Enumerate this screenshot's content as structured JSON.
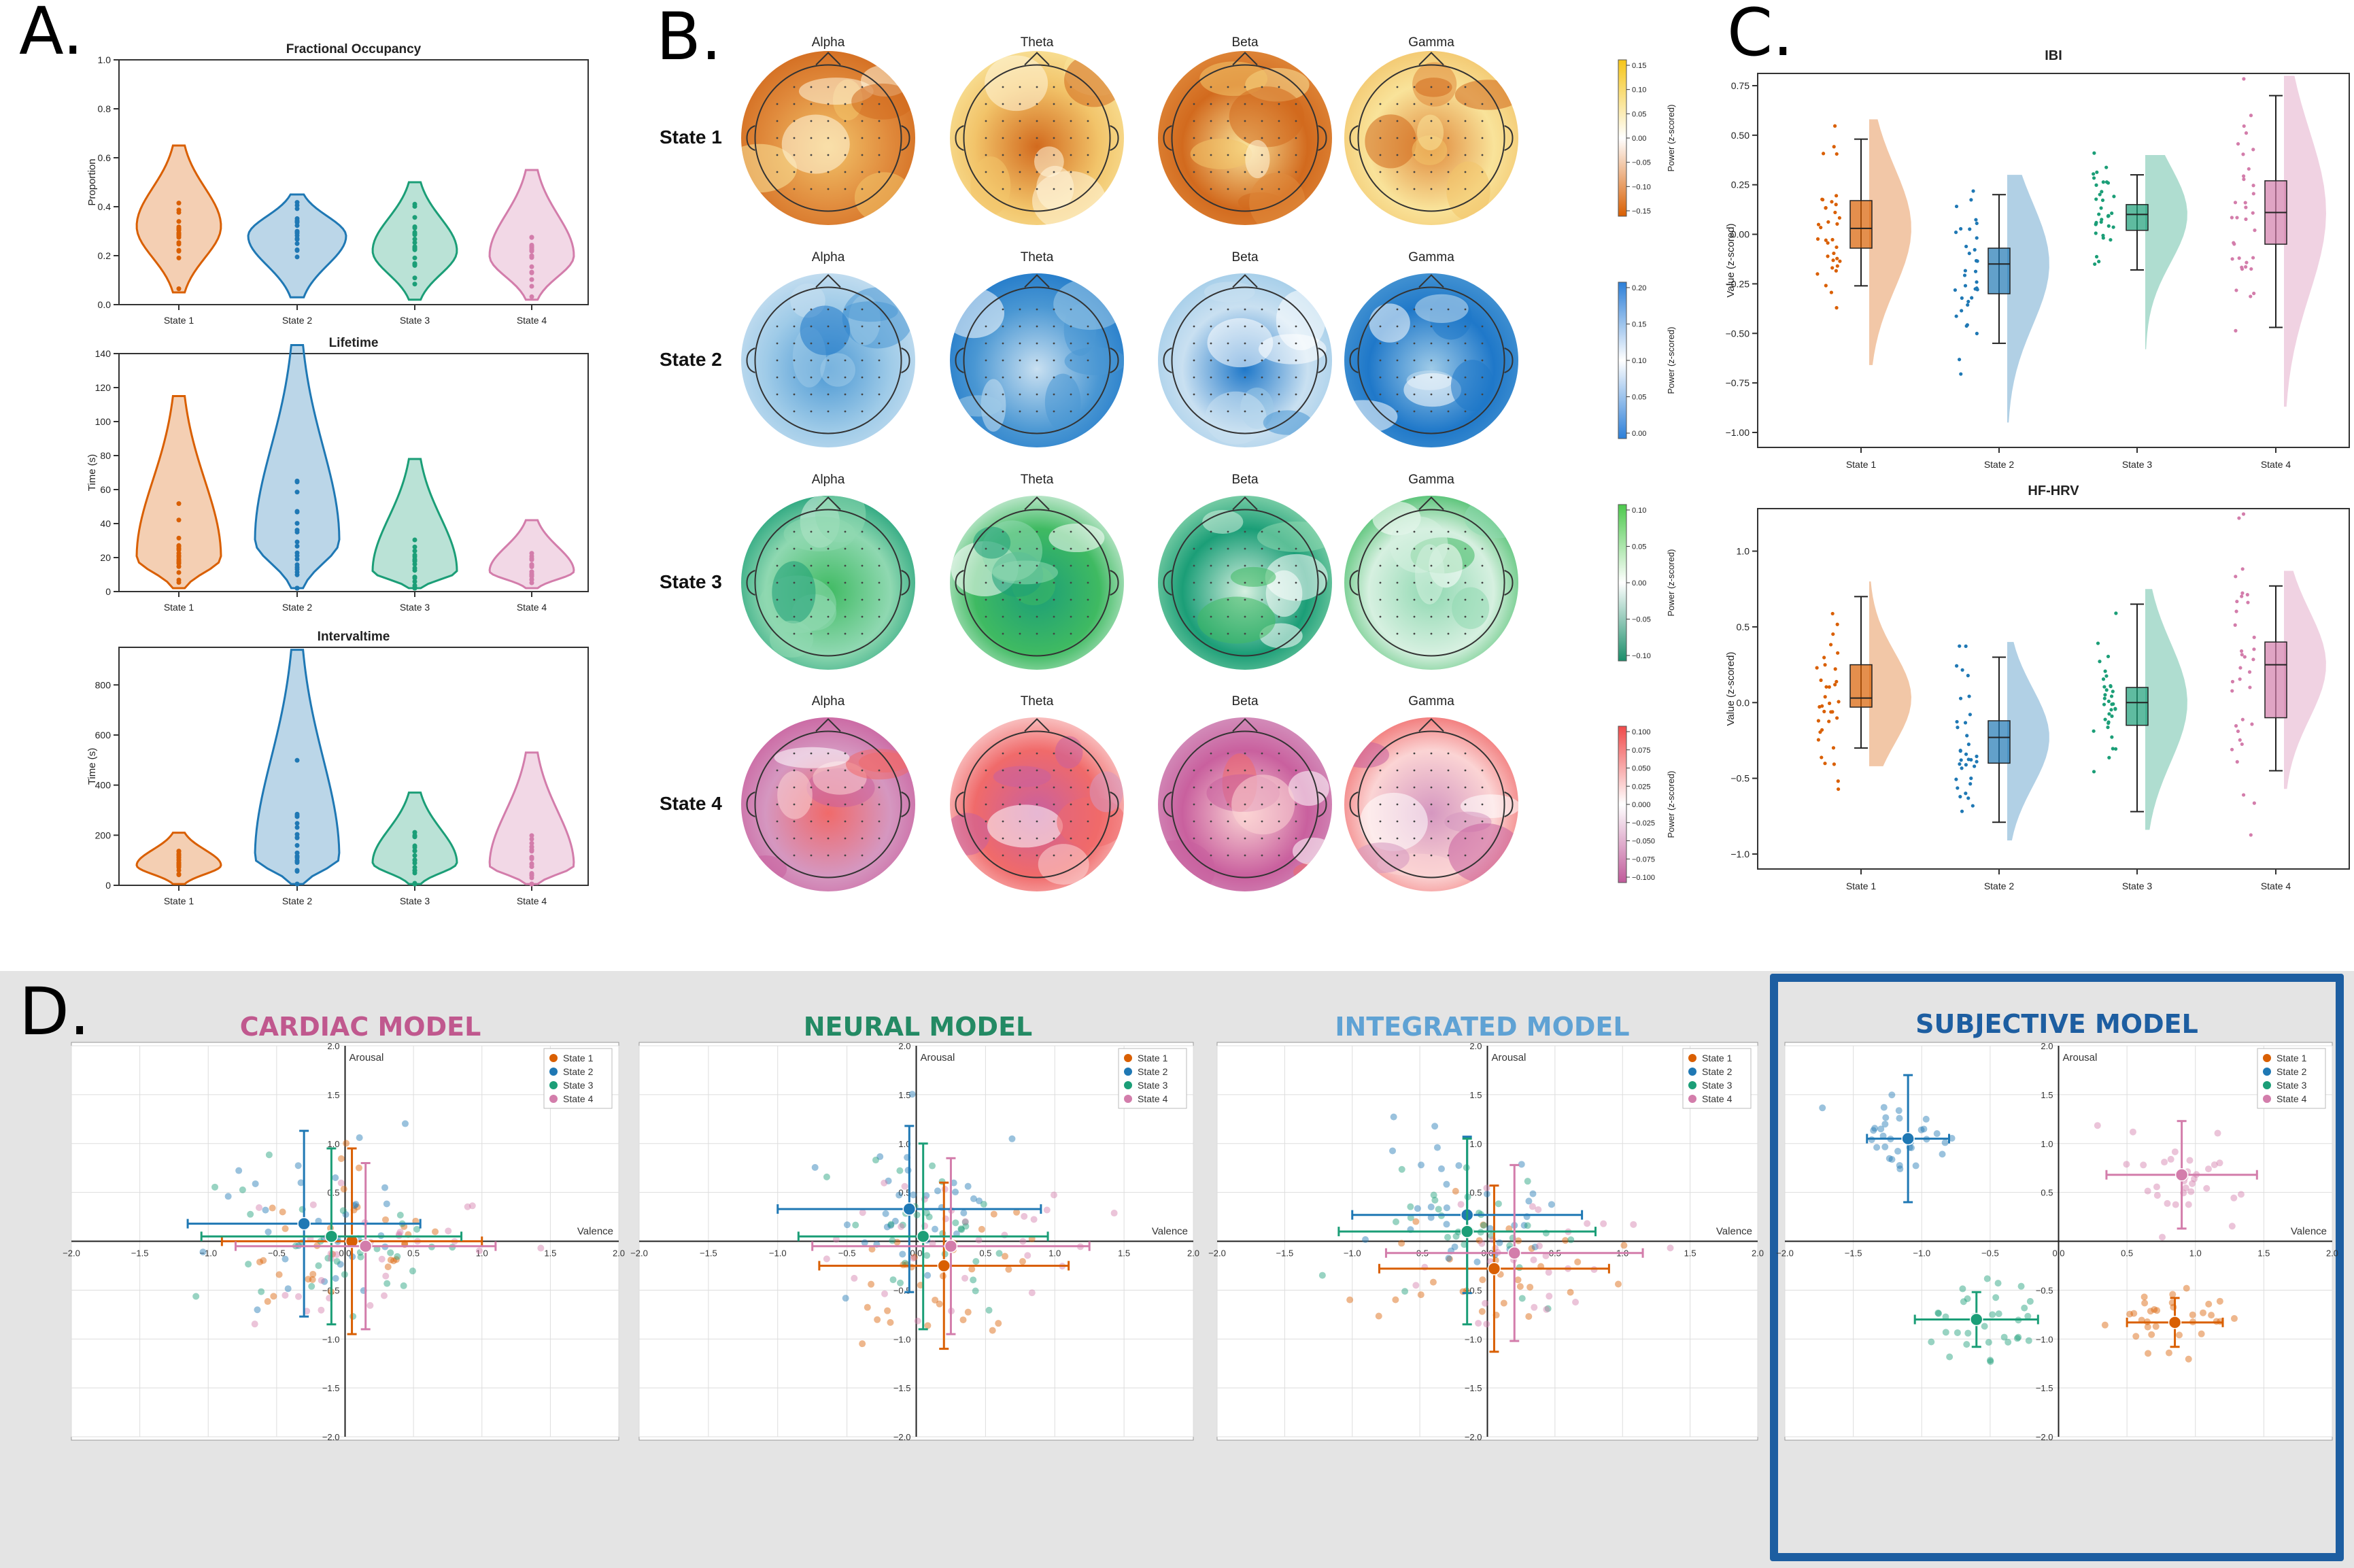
{
  "panels": {
    "a": "A.",
    "b": "B.",
    "c": "C.",
    "d": "D."
  },
  "colors": {
    "state1": "#d95f02",
    "state2": "#1f78b4",
    "state3": "#1b9e77",
    "state4": "#d37dab"
  },
  "state_labels": [
    "State 1",
    "State 2",
    "State 3",
    "State 4"
  ],
  "panelA": [
    {
      "title": "Fractional Occupancy",
      "ylabel": "Proportion",
      "ylim": [
        0,
        1.0
      ],
      "yticks": [
        0.0,
        0.2,
        0.4,
        0.6,
        0.8,
        1.0
      ],
      "tick_labels": [
        "0.0",
        "0.2",
        "0.4",
        "0.6",
        "0.8",
        "1.0"
      ],
      "medians": [
        0.32,
        0.28,
        0.22,
        0.2
      ],
      "ranges": [
        [
          0.05,
          0.65
        ],
        [
          0.03,
          0.45
        ],
        [
          0.02,
          0.5
        ],
        [
          0.02,
          0.55
        ]
      ]
    },
    {
      "title": "Lifetime",
      "ylabel": "Time (s)",
      "ylim": [
        0,
        140
      ],
      "yticks": [
        0,
        20,
        40,
        60,
        80,
        100,
        120,
        140
      ],
      "tick_labels": [
        "0",
        "20",
        "40",
        "60",
        "80",
        "100",
        "120",
        "140"
      ],
      "medians": [
        20,
        30,
        12,
        12
      ],
      "ranges": [
        [
          2,
          115
        ],
        [
          2,
          145
        ],
        [
          2,
          78
        ],
        [
          2,
          42
        ]
      ]
    },
    {
      "title": "Intervaltime",
      "ylabel": "Time (s)",
      "ylim": [
        0,
        950
      ],
      "yticks": [
        0,
        200,
        400,
        600,
        800
      ],
      "tick_labels": [
        "0",
        "200",
        "400",
        "600",
        "800"
      ],
      "medians": [
        80,
        110,
        90,
        80
      ],
      "ranges": [
        [
          5,
          210
        ],
        [
          5,
          940
        ],
        [
          5,
          370
        ],
        [
          5,
          530
        ]
      ]
    }
  ],
  "panelB": {
    "bands": [
      "Alpha",
      "Theta",
      "Beta",
      "Gamma"
    ],
    "states": [
      "State 1",
      "State 2",
      "State 3",
      "State 4"
    ],
    "colorbar_label": "Power (z-scored)",
    "colorbars": [
      {
        "ticks": [
          "0.15",
          "0.10",
          "0.05",
          "0.00",
          "−0.05",
          "−0.10",
          "−0.15"
        ],
        "top": "#f5c518",
        "bottom": "#d95f02"
      },
      {
        "ticks": [
          "0.20",
          "0.15",
          "0.10",
          "0.05",
          "0.00"
        ],
        "top": "#2c7fd8",
        "bottom": "#2c7fd8"
      },
      {
        "ticks": [
          "0.10",
          "0.05",
          "0.00",
          "−0.05",
          "−0.10"
        ],
        "top": "#4cc94c",
        "bottom": "#1b8e6a"
      },
      {
        "ticks": [
          "0.100",
          "0.075",
          "0.050",
          "0.025",
          "0.000",
          "−0.025",
          "−0.050",
          "−0.075",
          "−0.100"
        ],
        "top": "#f04a4a",
        "bottom": "#c05a9a"
      }
    ]
  },
  "panelC": [
    {
      "title": "IBI",
      "ylabel": "Value (z-scored)",
      "ylim": [
        -1.0,
        0.75
      ],
      "yticks": [
        -1.0,
        -0.75,
        -0.5,
        -0.25,
        0.0,
        0.25,
        0.5,
        0.75
      ],
      "tick_labels": [
        "−1.00",
        "−0.75",
        "−0.50",
        "−0.25",
        "0.00",
        "0.25",
        "0.50",
        "0.75"
      ],
      "boxes": [
        {
          "q1": -0.07,
          "med": 0.03,
          "q3": 0.17,
          "lo": -0.26,
          "hi": 0.48
        },
        {
          "q1": -0.3,
          "med": -0.15,
          "q3": -0.07,
          "lo": -0.55,
          "hi": 0.2
        },
        {
          "q1": 0.02,
          "med": 0.1,
          "q3": 0.15,
          "lo": -0.18,
          "hi": 0.3
        },
        {
          "q1": -0.05,
          "med": 0.11,
          "q3": 0.27,
          "lo": -0.47,
          "hi": 0.7
        }
      ]
    },
    {
      "title": "HF-HRV",
      "ylabel": "Value (z-scored)",
      "ylim": [
        -1.0,
        1.2
      ],
      "yticks": [
        -1.0,
        -0.5,
        0.0,
        0.5,
        1.0
      ],
      "tick_labels": [
        "−1.0",
        "−0.5",
        "0.0",
        "0.5",
        "1.0"
      ],
      "boxes": [
        {
          "q1": -0.03,
          "med": 0.03,
          "q3": 0.25,
          "lo": -0.3,
          "hi": 0.7
        },
        {
          "q1": -0.4,
          "med": -0.23,
          "q3": -0.12,
          "lo": -0.79,
          "hi": 0.3
        },
        {
          "q1": -0.15,
          "med": 0.0,
          "q3": 0.1,
          "lo": -0.72,
          "hi": 0.65
        },
        {
          "q1": -0.1,
          "med": 0.25,
          "q3": 0.4,
          "lo": -0.45,
          "hi": 0.77
        }
      ]
    }
  ],
  "panelD": {
    "xlabel": "Valence",
    "ylabel": "Arousal",
    "xlim": [
      -2.0,
      2.0
    ],
    "ylim": [
      -2.0,
      2.0
    ],
    "xticks": [
      "−2.0",
      "−1.5",
      "−1.0",
      "−0.5",
      "0.0",
      "0.5",
      "1.0",
      "1.5",
      "2.0"
    ],
    "yticks": [
      "−2.0",
      "−1.5",
      "−1.0",
      "−0.5",
      "0.0",
      "0.5",
      "1.0",
      "1.5",
      "2.0"
    ],
    "models": [
      {
        "title": "CARDIAC MODEL",
        "color": "#c0588e",
        "means": [
          {
            "x": 0.05,
            "y": 0.0,
            "sx": 0.95,
            "sy": 0.95
          },
          {
            "x": -0.3,
            "y": 0.18,
            "sx": 0.85,
            "sy": 0.95
          },
          {
            "x": -0.1,
            "y": 0.05,
            "sx": 0.95,
            "sy": 0.9
          },
          {
            "x": 0.15,
            "y": -0.05,
            "sx": 0.95,
            "sy": 0.85
          }
        ]
      },
      {
        "title": "NEURAL MODEL",
        "color": "#238a64",
        "means": [
          {
            "x": 0.2,
            "y": -0.25,
            "sx": 0.9,
            "sy": 0.85
          },
          {
            "x": -0.05,
            "y": 0.33,
            "sx": 0.95,
            "sy": 0.85
          },
          {
            "x": 0.05,
            "y": 0.05,
            "sx": 0.9,
            "sy": 0.95
          },
          {
            "x": 0.25,
            "y": -0.05,
            "sx": 1.0,
            "sy": 0.9
          }
        ]
      },
      {
        "title": "INTEGRATED MODEL",
        "color": "#5fa2d4",
        "means": [
          {
            "x": 0.05,
            "y": -0.28,
            "sx": 0.85,
            "sy": 0.85
          },
          {
            "x": -0.15,
            "y": 0.27,
            "sx": 0.85,
            "sy": 0.8
          },
          {
            "x": -0.15,
            "y": 0.1,
            "sx": 0.95,
            "sy": 0.95
          },
          {
            "x": 0.2,
            "y": -0.12,
            "sx": 0.95,
            "sy": 0.9
          }
        ]
      },
      {
        "title": "SUBJECTIVE MODEL",
        "color": "#1d5ea1",
        "means": [
          {
            "x": 0.85,
            "y": -0.83,
            "sx": 0.35,
            "sy": 0.25
          },
          {
            "x": -1.1,
            "y": 1.05,
            "sx": 0.3,
            "sy": 0.65
          },
          {
            "x": -0.6,
            "y": -0.8,
            "sx": 0.45,
            "sy": 0.28
          },
          {
            "x": 0.9,
            "y": 0.68,
            "sx": 0.55,
            "sy": 0.55
          }
        ]
      }
    ]
  }
}
